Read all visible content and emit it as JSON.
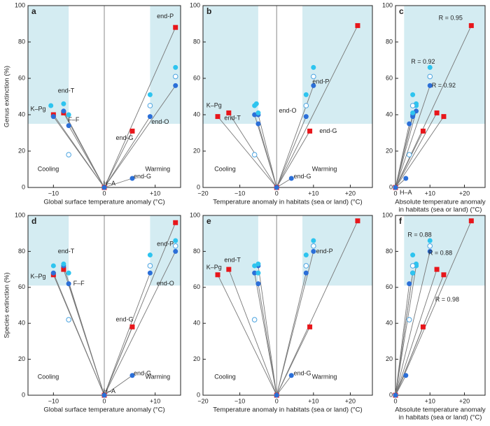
{
  "chart_data": [
    {
      "type": "scatter",
      "panel": "a",
      "ylabel": "Genus extinction (%)",
      "xlabel": [
        "Global surface temperature anomaly (°C)"
      ],
      "xlim": [
        -15,
        15
      ],
      "ylim": [
        0,
        100
      ],
      "xticks": [
        {
          "value": -10,
          "label": "−10"
        },
        0,
        {
          "value": 10,
          "label": "+10"
        }
      ],
      "yticks": [
        0,
        20,
        40,
        60,
        80,
        100
      ],
      "vline": 0,
      "shades": [
        {
          "x": [
            -15,
            -7
          ],
          "y": [
            35,
            100
          ]
        },
        {
          "x": [
            9,
            15
          ],
          "y": [
            35,
            100
          ]
        }
      ],
      "series": [
        {
          "marker": "square",
          "color": "#e8161b",
          "lines": true,
          "x": [
            0,
            5.5,
            14,
            -10,
            -8
          ],
          "y": [
            0,
            31,
            88,
            40,
            41
          ]
        },
        {
          "marker": "circle",
          "color": "#2b6fd8",
          "lines": true,
          "x": [
            0,
            5.5,
            9,
            14,
            -10,
            -8,
            -7
          ],
          "y": [
            0,
            5,
            39,
            56,
            39,
            42,
            34
          ]
        },
        {
          "marker": "circle",
          "color": "#2ec4ef",
          "x": [
            9,
            14,
            -10.5,
            -8,
            -7
          ],
          "y": [
            51,
            66,
            45,
            46,
            40
          ]
        },
        {
          "marker": "open",
          "color": "#4aa3e0",
          "x": [
            9,
            14,
            -7
          ],
          "y": [
            45,
            61,
            18
          ]
        }
      ],
      "annotations": [
        {
          "text": "end-P",
          "x": 12,
          "y": 94
        },
        {
          "text": "end-T",
          "x": -7.5,
          "y": 53
        },
        {
          "text": "K–Pg",
          "x": -13,
          "y": 43
        },
        {
          "text": "F–F",
          "x": -6,
          "y": 37
        },
        {
          "text": "end-G",
          "x": 4,
          "y": 27
        },
        {
          "text": "end-G",
          "x": 7.5,
          "y": 6
        },
        {
          "text": "end-O",
          "x": 11,
          "y": 36
        },
        {
          "text": "Cooling",
          "x": -11,
          "y": 10
        },
        {
          "text": "Warming",
          "x": 10.5,
          "y": 10
        },
        {
          "text": "H–A",
          "x": 1,
          "y": 2
        }
      ]
    },
    {
      "type": "scatter",
      "panel": "b",
      "xlabel": [
        "Temperature anomaly in habitats (sea or land) (°C)"
      ],
      "xlim": [
        -20,
        26
      ],
      "ylim": [
        0,
        100
      ],
      "xticks": [
        {
          "value": -20,
          "label": "−20"
        },
        {
          "value": -10,
          "label": "−10"
        },
        0,
        {
          "value": 10,
          "label": "+10"
        },
        {
          "value": 20,
          "label": "+20"
        }
      ],
      "yticks": [
        0,
        20,
        40,
        60,
        80,
        100
      ],
      "vline": 0,
      "shades": [
        {
          "x": [
            -20,
            -5
          ],
          "y": [
            35,
            100
          ]
        },
        {
          "x": [
            7,
            26
          ],
          "y": [
            35,
            100
          ]
        }
      ],
      "series": [
        {
          "marker": "square",
          "color": "#e8161b",
          "lines": true,
          "x": [
            0,
            9,
            22,
            -16,
            -13
          ],
          "y": [
            0,
            31,
            89,
            39,
            41
          ]
        },
        {
          "marker": "circle",
          "color": "#2b6fd8",
          "lines": true,
          "x": [
            0,
            4,
            8,
            10,
            -6,
            -5,
            -5
          ],
          "y": [
            0,
            5,
            39,
            56,
            40,
            40,
            35
          ]
        },
        {
          "marker": "circle",
          "color": "#2ec4ef",
          "x": [
            8,
            10,
            -6,
            -5.5,
            -5
          ],
          "y": [
            51,
            66,
            45,
            46,
            41
          ]
        },
        {
          "marker": "open",
          "color": "#4aa3e0",
          "x": [
            8,
            10,
            -6
          ],
          "y": [
            45,
            61,
            18
          ]
        }
      ],
      "annotations": [
        {
          "text": "K–Pg",
          "x": -17,
          "y": 45
        },
        {
          "text": "end-T",
          "x": -12,
          "y": 38
        },
        {
          "text": "end-P",
          "x": 12,
          "y": 58
        },
        {
          "text": "end-O",
          "x": 3,
          "y": 42
        },
        {
          "text": "end-G",
          "x": 14,
          "y": 31
        },
        {
          "text": "end-G",
          "x": 7,
          "y": 6
        },
        {
          "text": "Cooling",
          "x": -14,
          "y": 10
        },
        {
          "text": "Warming",
          "x": 13,
          "y": 10
        }
      ]
    },
    {
      "type": "scatter",
      "panel": "c",
      "xlabel": [
        "Absolute temperature anomaly",
        "in habitats (sea or land) (°C)"
      ],
      "xlim": [
        0,
        26
      ],
      "ylim": [
        0,
        100
      ],
      "xticks": [
        0,
        {
          "value": 10,
          "label": "+10"
        },
        {
          "value": 20,
          "label": "+20"
        }
      ],
      "yticks": [
        0,
        20,
        40,
        60,
        80,
        100
      ],
      "shades": [
        {
          "x": [
            2.5,
            26
          ],
          "y": [
            35,
            100
          ]
        }
      ],
      "series": [
        {
          "marker": "square",
          "color": "#e8161b",
          "lines": true,
          "x": [
            0,
            8,
            22,
            12,
            14
          ],
          "y": [
            0,
            31,
            89,
            41,
            39
          ]
        },
        {
          "marker": "circle",
          "color": "#2b6fd8",
          "lines": true,
          "x": [
            0,
            3,
            5,
            10,
            5,
            6,
            4
          ],
          "y": [
            0,
            5,
            39,
            56,
            40,
            42,
            35
          ]
        },
        {
          "marker": "circle",
          "color": "#2ec4ef",
          "x": [
            5,
            10,
            6,
            6,
            5
          ],
          "y": [
            51,
            66,
            45,
            46,
            41
          ]
        },
        {
          "marker": "open",
          "color": "#4aa3e0",
          "x": [
            5,
            10,
            4
          ],
          "y": [
            45,
            61,
            18
          ]
        }
      ],
      "annotations": [
        {
          "text": "R = 0.95",
          "x": 16,
          "y": 93
        },
        {
          "text": "R = 0.92",
          "x": 8,
          "y": 69
        },
        {
          "text": "R = 0.92",
          "x": 14,
          "y": 56
        },
        {
          "text": "H–A",
          "x": 3,
          "y": -3
        }
      ]
    },
    {
      "type": "scatter",
      "panel": "d",
      "ylabel": "Species extinction (%)",
      "xlabel": [
        "Global surface temperature anomaly (°C)"
      ],
      "xlim": [
        -15,
        15
      ],
      "ylim": [
        0,
        100
      ],
      "xticks": [
        {
          "value": -10,
          "label": "−10"
        },
        0,
        {
          "value": 10,
          "label": "+10"
        }
      ],
      "yticks": [
        0,
        20,
        40,
        60,
        80,
        100
      ],
      "vline": 0,
      "shades": [
        {
          "x": [
            -15,
            -7
          ],
          "y": [
            61,
            100
          ]
        },
        {
          "x": [
            9,
            15
          ],
          "y": [
            61,
            100
          ]
        }
      ],
      "series": [
        {
          "marker": "square",
          "color": "#e8161b",
          "lines": true,
          "x": [
            0,
            5.5,
            14,
            -10,
            -8
          ],
          "y": [
            0,
            38,
            96,
            67,
            70
          ]
        },
        {
          "marker": "circle",
          "color": "#2b6fd8",
          "lines": true,
          "x": [
            0,
            5.5,
            9,
            14,
            -10,
            -8,
            -7
          ],
          "y": [
            0,
            11,
            68,
            80,
            68,
            72,
            62
          ]
        },
        {
          "marker": "circle",
          "color": "#2ec4ef",
          "x": [
            9,
            14,
            -10,
            -8,
            -7
          ],
          "y": [
            78,
            86,
            72,
            73,
            68
          ]
        },
        {
          "marker": "open",
          "color": "#4aa3e0",
          "x": [
            9,
            14,
            -7
          ],
          "y": [
            72,
            83,
            42
          ]
        }
      ],
      "annotations": [
        {
          "text": "end-P",
          "x": 12,
          "y": 84
        },
        {
          "text": "end-T",
          "x": -7.5,
          "y": 80
        },
        {
          "text": "K–Pg",
          "x": -13,
          "y": 66
        },
        {
          "text": "F–F",
          "x": -5,
          "y": 62
        },
        {
          "text": "end-G",
          "x": 4,
          "y": 42
        },
        {
          "text": "end-G",
          "x": 7.5,
          "y": 12
        },
        {
          "text": "end-O",
          "x": 12,
          "y": 62
        },
        {
          "text": "Cooling",
          "x": -11,
          "y": 10
        },
        {
          "text": "Warming",
          "x": 10.5,
          "y": 10
        },
        {
          "text": "H–A",
          "x": 1,
          "y": 2
        }
      ]
    },
    {
      "type": "scatter",
      "panel": "e",
      "xlabel": [
        "Temperature anomaly in habitats (sea or land) (°C)"
      ],
      "xlim": [
        -20,
        26
      ],
      "ylim": [
        0,
        100
      ],
      "xticks": [
        {
          "value": -20,
          "label": "−20"
        },
        {
          "value": -10,
          "label": "−10"
        },
        0,
        {
          "value": 10,
          "label": "+10"
        },
        {
          "value": 20,
          "label": "+20"
        }
      ],
      "yticks": [
        0,
        20,
        40,
        60,
        80,
        100
      ],
      "vline": 0,
      "shades": [
        {
          "x": [
            -20,
            -5
          ],
          "y": [
            61,
            100
          ]
        },
        {
          "x": [
            7,
            26
          ],
          "y": [
            61,
            100
          ]
        }
      ],
      "series": [
        {
          "marker": "square",
          "color": "#e8161b",
          "lines": true,
          "x": [
            0,
            9,
            22,
            -16,
            -13
          ],
          "y": [
            0,
            38,
            97,
            67,
            70
          ]
        },
        {
          "marker": "circle",
          "color": "#2b6fd8",
          "lines": true,
          "x": [
            0,
            4,
            8,
            10,
            -6,
            -5,
            -5
          ],
          "y": [
            0,
            11,
            68,
            80,
            68,
            72,
            62
          ]
        },
        {
          "marker": "circle",
          "color": "#2ec4ef",
          "x": [
            8,
            10,
            -6,
            -5,
            -5
          ],
          "y": [
            78,
            86,
            72,
            73,
            68
          ]
        },
        {
          "marker": "open",
          "color": "#4aa3e0",
          "x": [
            8,
            10,
            -6
          ],
          "y": [
            72,
            83,
            42
          ]
        }
      ],
      "annotations": [
        {
          "text": "end-T",
          "x": -12,
          "y": 75
        },
        {
          "text": "K–Pg",
          "x": -17,
          "y": 71
        },
        {
          "text": "end-P",
          "x": 13,
          "y": 80
        },
        {
          "text": "end-G",
          "x": 7,
          "y": 12
        },
        {
          "text": "Cooling",
          "x": -14,
          "y": 10
        },
        {
          "text": "Warming",
          "x": 13,
          "y": 10
        }
      ]
    },
    {
      "type": "scatter",
      "panel": "f",
      "xlabel": [
        "Absolute temperature anomaly",
        "in habitats (sea or land) (°C)"
      ],
      "xlim": [
        0,
        26
      ],
      "ylim": [
        0,
        100
      ],
      "xticks": [
        0,
        {
          "value": 10,
          "label": "+10"
        },
        {
          "value": 20,
          "label": "+20"
        }
      ],
      "yticks": [
        0,
        20,
        40,
        60,
        80,
        100
      ],
      "shades": [
        {
          "x": [
            2.5,
            26
          ],
          "y": [
            61,
            100
          ]
        }
      ],
      "series": [
        {
          "marker": "square",
          "color": "#e8161b",
          "lines": true,
          "x": [
            0,
            8,
            22,
            12,
            14
          ],
          "y": [
            0,
            38,
            97,
            70,
            67
          ]
        },
        {
          "marker": "circle",
          "color": "#2b6fd8",
          "lines": true,
          "x": [
            0,
            3,
            5,
            10,
            5,
            6,
            4
          ],
          "y": [
            0,
            11,
            68,
            80,
            68,
            72,
            62
          ]
        },
        {
          "marker": "circle",
          "color": "#2ec4ef",
          "x": [
            5,
            10,
            6,
            6,
            5
          ],
          "y": [
            78,
            86,
            72,
            73,
            68
          ]
        },
        {
          "marker": "open",
          "color": "#4aa3e0",
          "x": [
            5,
            10,
            4
          ],
          "y": [
            72,
            83,
            42
          ]
        }
      ],
      "annotations": [
        {
          "text": "R = 0.88",
          "x": 7,
          "y": 89
        },
        {
          "text": "R = 0.88",
          "x": 13,
          "y": 79
        },
        {
          "text": "R = 0.98",
          "x": 15,
          "y": 53
        }
      ]
    }
  ]
}
